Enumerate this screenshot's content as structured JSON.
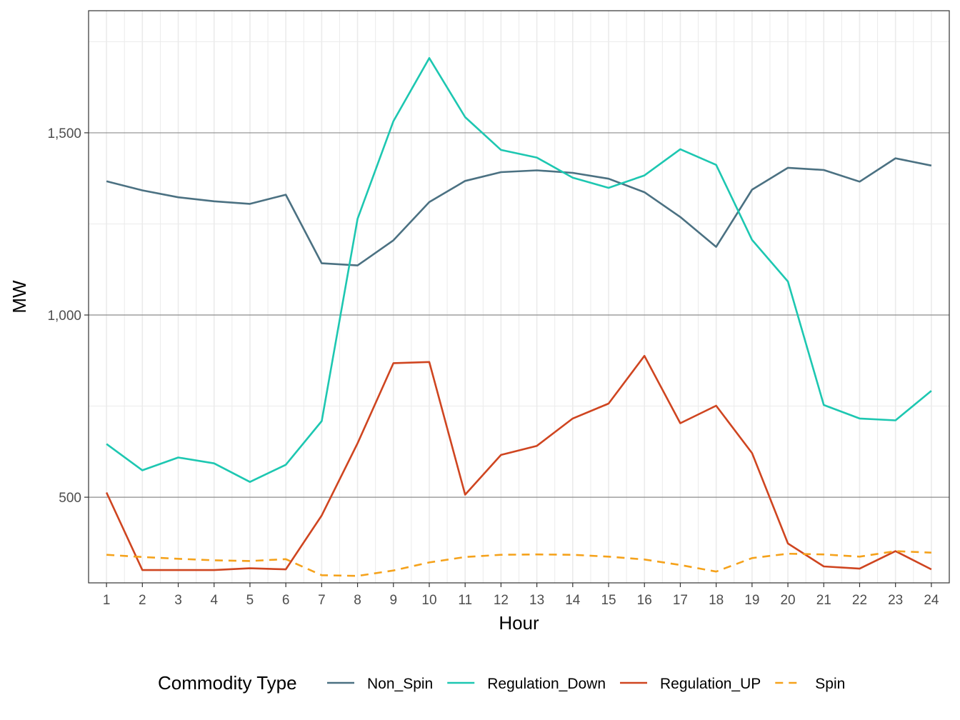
{
  "chart_data": {
    "type": "line",
    "title": "",
    "xlabel": "Hour",
    "ylabel": "MW",
    "x": [
      1,
      2,
      3,
      4,
      5,
      6,
      7,
      8,
      9,
      10,
      11,
      12,
      13,
      14,
      15,
      16,
      17,
      18,
      19,
      20,
      21,
      22,
      23,
      24
    ],
    "x_ticks": [
      "1",
      "2",
      "3",
      "4",
      "5",
      "6",
      "7",
      "8",
      "9",
      "10",
      "11",
      "12",
      "13",
      "14",
      "15",
      "16",
      "17",
      "18",
      "19",
      "20",
      "21",
      "22",
      "23",
      "24"
    ],
    "xlim": [
      0.5,
      24.5
    ],
    "ylim": [
      265,
      1835
    ],
    "y_ticks": [
      500,
      1000,
      1500
    ],
    "y_tick_labels": [
      "500",
      "1,000",
      "1,500"
    ],
    "grid": true,
    "legend": {
      "title": "Commodity Type",
      "position": "bottom"
    },
    "series": [
      {
        "name": "Non_Spin",
        "color": "#4b7182",
        "dash": "solid",
        "values": [
          1367,
          1342,
          1323,
          1312,
          1305,
          1330,
          1142,
          1136,
          1205,
          1310,
          1368,
          1392,
          1397,
          1390,
          1374,
          1337,
          1269,
          1187,
          1344,
          1404,
          1398,
          1366,
          1430,
          1410
        ]
      },
      {
        "name": "Regulation_Down",
        "color": "#1dc7b1",
        "dash": "solid",
        "values": [
          646,
          574,
          609,
          593,
          542,
          589,
          709,
          1264,
          1532,
          1705,
          1543,
          1453,
          1432,
          1377,
          1349,
          1383,
          1455,
          1412,
          1206,
          1092,
          753,
          716,
          711,
          792
        ]
      },
      {
        "name": "Regulation_UP",
        "color": "#cf4520",
        "dash": "solid",
        "values": [
          513,
          300,
          300,
          300,
          305,
          302,
          450,
          648,
          868,
          871,
          507,
          616,
          641,
          716,
          757,
          888,
          703,
          751,
          621,
          373,
          310,
          304,
          352,
          302
        ]
      },
      {
        "name": "Spin",
        "color": "#f5a21b",
        "dash": "dashed",
        "values": [
          342,
          336,
          331,
          327,
          325,
          330,
          286,
          284,
          299,
          321,
          336,
          342,
          343,
          342,
          337,
          329,
          314,
          296,
          333,
          345,
          343,
          337,
          352,
          348
        ]
      }
    ]
  }
}
